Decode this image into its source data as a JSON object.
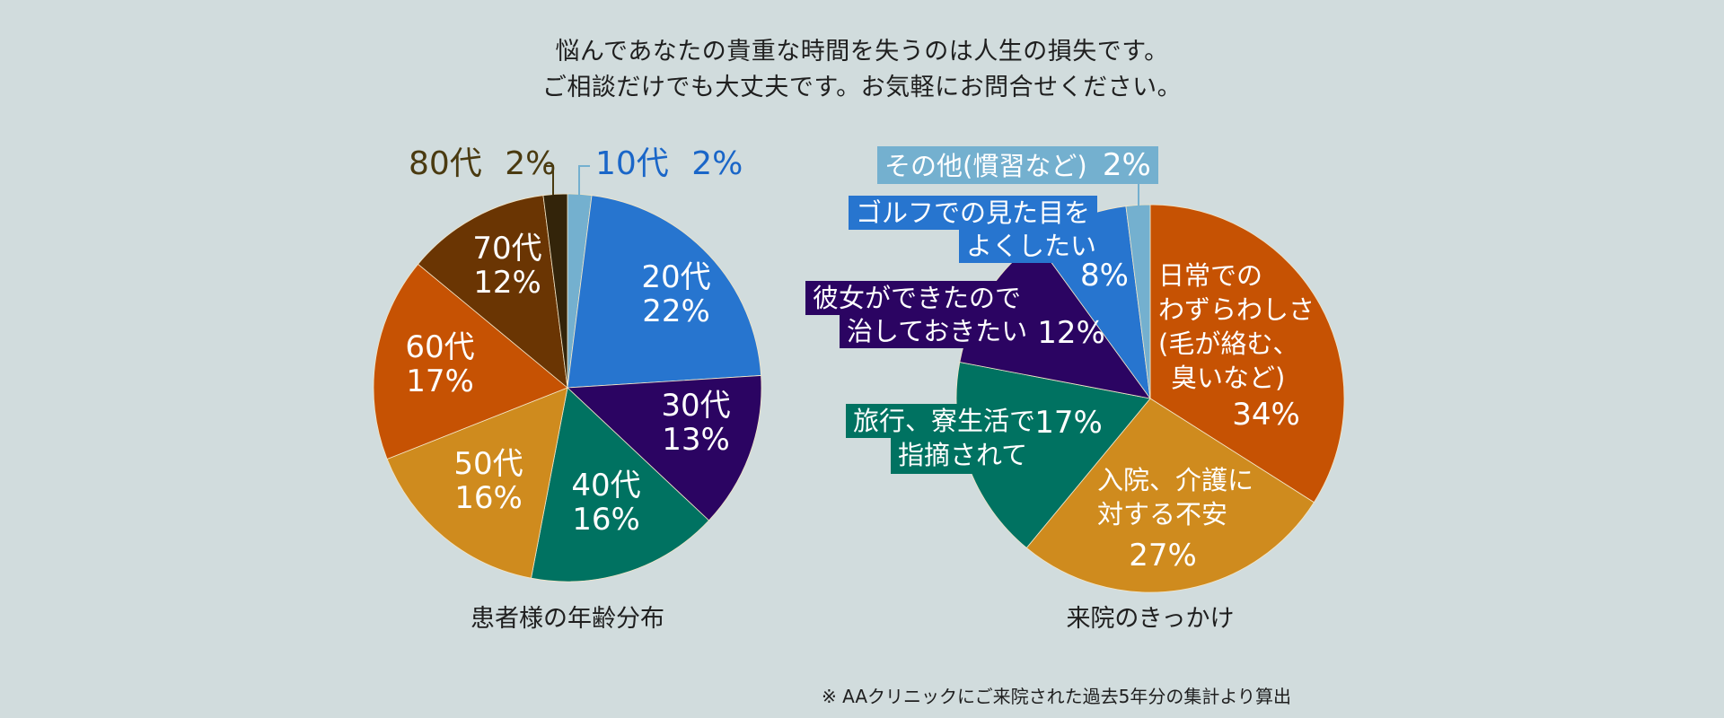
{
  "headline": {
    "line1": "悩んであなたの貴重な時間を失うのは人生の損失です。",
    "line2": "ご相談だけでも大丈夫です。お気軽にお問合せください。"
  },
  "footnote": "※ AAクリニックにご来院された過去5年分の集計より算出",
  "chart_data": [
    {
      "type": "pie",
      "title": "患者様の年齢分布",
      "start": "top",
      "direction": "clockwise",
      "slices": [
        {
          "label": "10代",
          "value": 2,
          "pct_label": "2%",
          "color": "#74b0cf",
          "text_color": "#1a66c8"
        },
        {
          "label": "20代",
          "value": 22,
          "pct_label": "22%",
          "color": "#2775cf"
        },
        {
          "label": "30代",
          "value": 13,
          "pct_label": "13%",
          "color": "#2b0462"
        },
        {
          "label": "40代",
          "value": 16,
          "pct_label": "16%",
          "color": "#007261"
        },
        {
          "label": "50代",
          "value": 16,
          "pct_label": "16%",
          "color": "#cf8b1e"
        },
        {
          "label": "60代",
          "value": 17,
          "pct_label": "17%",
          "color": "#c65203"
        },
        {
          "label": "70代",
          "value": 12,
          "pct_label": "12%",
          "color": "#6a3503"
        },
        {
          "label": "80代",
          "value": 2,
          "pct_label": "2%",
          "color": "#33240a",
          "text_color": "#4a3a10"
        }
      ]
    },
    {
      "type": "pie",
      "title": "来院のきっかけ",
      "start": "top",
      "direction": "clockwise",
      "slices": [
        {
          "label_lines": [
            "日常での",
            "わずらわしさ",
            "(毛が絡む、",
            "臭いなど)"
          ],
          "value": 34,
          "pct_label": "34%",
          "color": "#c65203"
        },
        {
          "label_lines": [
            "入院、介護に",
            "対する不安"
          ],
          "value": 27,
          "pct_label": "27%",
          "color": "#cf8b1e"
        },
        {
          "label_lines": [
            "旅行、寮生活で",
            "指摘されて"
          ],
          "value": 17,
          "pct_label": "17%",
          "color": "#007261"
        },
        {
          "label_lines": [
            "彼女ができたので",
            "治しておきたい"
          ],
          "value": 12,
          "pct_label": "12%",
          "color": "#2b0462"
        },
        {
          "label_lines": [
            "ゴルフでの見た目を",
            "よくしたい"
          ],
          "value": 8,
          "pct_label": "8%",
          "color": "#2775cf"
        },
        {
          "label_lines": [
            "その他(慣習など)"
          ],
          "value": 2,
          "pct_label": "2%",
          "color": "#74b0cf"
        }
      ]
    }
  ]
}
